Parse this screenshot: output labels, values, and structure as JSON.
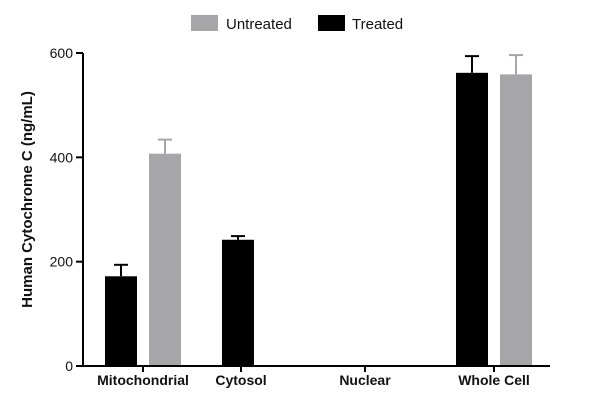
{
  "chart_data": {
    "type": "bar",
    "categories": [
      "Mitochondrial",
      "Cytosol",
      "Nuclear",
      "Whole Cell"
    ],
    "ylabel": "Human Cytochrome C (ng/mL)",
    "ylim": [
      0,
      600
    ],
    "yticks": [
      0,
      200,
      400,
      600
    ],
    "legend_position": "top-center",
    "grid": false,
    "legend": [
      {
        "name": "Untreated",
        "color": "#a6a6a8"
      },
      {
        "name": "Treated",
        "color": "#000000"
      }
    ],
    "groups": [
      {
        "category": "Mitochondrial",
        "bars": [
          {
            "series": "Treated",
            "value": 172,
            "error": 22
          },
          {
            "series": "Untreated",
            "value": 407,
            "error": 27
          }
        ]
      },
      {
        "category": "Cytosol",
        "bars": [
          {
            "series": "Treated",
            "value": 242,
            "error": 7
          }
        ]
      },
      {
        "category": "Nuclear",
        "bars": []
      },
      {
        "category": "Whole Cell",
        "bars": [
          {
            "series": "Treated",
            "value": 562,
            "error": 32
          },
          {
            "series": "Untreated",
            "value": 559,
            "error": 37
          }
        ]
      }
    ]
  }
}
